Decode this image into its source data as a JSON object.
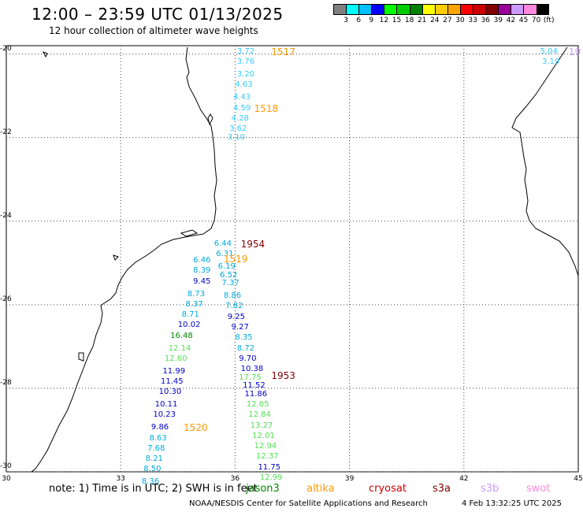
{
  "header": {
    "title": "12:00 – 23:59 UTC 01/13/2025",
    "subtitle": "12 hour collection of altimeter wave heights"
  },
  "colorbar": {
    "colors": [
      "#808080",
      "#00ffff",
      "#00bfff",
      "#0000ff",
      "#00ff00",
      "#00cc00",
      "#008000",
      "#ffff00",
      "#ffcc00",
      "#ffa500",
      "#ff0000",
      "#cc0000",
      "#800000",
      "#990099",
      "#cc99ff",
      "#ff88dd",
      "#000000"
    ],
    "labels": [
      "3",
      "6",
      "9",
      "12",
      "15",
      "18",
      "21",
      "24",
      "27",
      "30",
      "33",
      "36",
      "39",
      "42",
      "45",
      "70",
      "(ft)"
    ]
  },
  "axes": {
    "lon_ticks": [
      "30",
      "33",
      "36",
      "39",
      "42",
      "45"
    ],
    "lat_ticks": [
      "-20",
      "-22",
      "-24",
      "-26",
      "-28",
      "-30"
    ],
    "lon_range": [
      30,
      45
    ],
    "lat_range": [
      -30,
      -19.8
    ]
  },
  "tracks": [
    {
      "id": "1517",
      "color": "#ff9900",
      "lon": 36.95,
      "lat": -19.95
    },
    {
      "id": "1518",
      "color": "#ff9900",
      "lon": 36.5,
      "lat": -21.3
    },
    {
      "id": "1954",
      "color": "#800000",
      "lon": 36.15,
      "lat": -24.55
    },
    {
      "id": "1519",
      "color": "#ff9900",
      "lon": 35.7,
      "lat": -24.9
    },
    {
      "id": "1953",
      "color": "#800000",
      "lon": 36.95,
      "lat": -27.7
    },
    {
      "id": "1520",
      "color": "#ff9900",
      "lon": 34.65,
      "lat": -28.95
    },
    {
      "id": "19",
      "color": "#cc99ff",
      "lon": 44.75,
      "lat": -19.95
    }
  ],
  "wave_heights": [
    {
      "v": "3.72",
      "c": "#33ccff",
      "lon": 36.05,
      "lat": -19.95
    },
    {
      "v": "3.76",
      "c": "#33ccff",
      "lon": 36.05,
      "lat": -20.2
    },
    {
      "v": "3.20",
      "c": "#33ccff",
      "lon": 36.05,
      "lat": -20.5
    },
    {
      "v": "4.63",
      "c": "#33ccff",
      "lon": 36.0,
      "lat": -20.75
    },
    {
      "v": "4.43",
      "c": "#33ccff",
      "lon": 35.95,
      "lat": -21.05
    },
    {
      "v": "4.59",
      "c": "#33ccff",
      "lon": 35.95,
      "lat": -21.3
    },
    {
      "v": "4.28",
      "c": "#33ccff",
      "lon": 35.9,
      "lat": -21.55
    },
    {
      "v": "3.62",
      "c": "#33ccff",
      "lon": 35.85,
      "lat": -21.8
    },
    {
      "v": "3.10",
      "c": "#33ccff",
      "lon": 35.8,
      "lat": -22.0
    },
    {
      "v": "5.04",
      "c": "#33ccff",
      "lon": 44.0,
      "lat": -19.95
    },
    {
      "v": "3.19",
      "c": "#33ccff",
      "lon": 44.05,
      "lat": -20.2
    },
    {
      "v": "6.44",
      "c": "#00aadd",
      "lon": 35.45,
      "lat": -24.55
    },
    {
      "v": "6.31",
      "c": "#00aadd",
      "lon": 35.5,
      "lat": -24.8
    },
    {
      "v": "6.46",
      "c": "#00aadd",
      "lon": 34.9,
      "lat": -24.95
    },
    {
      "v": "6.19",
      "c": "#00aadd",
      "lon": 35.55,
      "lat": -25.1
    },
    {
      "v": "8.39",
      "c": "#00aadd",
      "lon": 34.9,
      "lat": -25.2
    },
    {
      "v": "6.52",
      "c": "#00aadd",
      "lon": 35.6,
      "lat": -25.3
    },
    {
      "v": "9.45",
      "c": "#0000cc",
      "lon": 34.9,
      "lat": -25.45
    },
    {
      "v": "7.37",
      "c": "#00aadd",
      "lon": 35.65,
      "lat": -25.5
    },
    {
      "v": "8.73",
      "c": "#00aadd",
      "lon": 34.75,
      "lat": -25.75
    },
    {
      "v": "8.86",
      "c": "#00aadd",
      "lon": 35.7,
      "lat": -25.8
    },
    {
      "v": "8.37",
      "c": "#00aadd",
      "lon": 34.7,
      "lat": -26.0
    },
    {
      "v": "7.82",
      "c": "#00aadd",
      "lon": 35.75,
      "lat": -26.05
    },
    {
      "v": "8.71",
      "c": "#00aadd",
      "lon": 34.6,
      "lat": -26.25
    },
    {
      "v": "9.25",
      "c": "#0000cc",
      "lon": 35.8,
      "lat": -26.3
    },
    {
      "v": "10.02",
      "c": "#0000cc",
      "lon": 34.5,
      "lat": -26.5
    },
    {
      "v": "9.27",
      "c": "#0000cc",
      "lon": 35.9,
      "lat": -26.55
    },
    {
      "v": "16.48",
      "c": "#008800",
      "lon": 34.3,
      "lat": -26.75
    },
    {
      "v": "8.35",
      "c": "#00aadd",
      "lon": 36.0,
      "lat": -26.8
    },
    {
      "v": "12.14",
      "c": "#55dd55",
      "lon": 34.25,
      "lat": -27.05
    },
    {
      "v": "8.72",
      "c": "#00aadd",
      "lon": 36.05,
      "lat": -27.05
    },
    {
      "v": "12.60",
      "c": "#55dd55",
      "lon": 34.15,
      "lat": -27.3
    },
    {
      "v": "9.70",
      "c": "#0000cc",
      "lon": 36.1,
      "lat": -27.3
    },
    {
      "v": "11.99",
      "c": "#0000cc",
      "lon": 34.1,
      "lat": -27.6
    },
    {
      "v": "10.38",
      "c": "#0000cc",
      "lon": 36.15,
      "lat": -27.55
    },
    {
      "v": "17.75",
      "c": "#55dd55",
      "lon": 36.1,
      "lat": -27.75
    },
    {
      "v": "11.45",
      "c": "#0000cc",
      "lon": 34.05,
      "lat": -27.85
    },
    {
      "v": "11.52",
      "c": "#0000cc",
      "lon": 36.2,
      "lat": -27.95
    },
    {
      "v": "10.30",
      "c": "#0000cc",
      "lon": 34.0,
      "lat": -28.1
    },
    {
      "v": "11.86",
      "c": "#0000cc",
      "lon": 36.25,
      "lat": -28.15
    },
    {
      "v": "10.11",
      "c": "#0000cc",
      "lon": 33.9,
      "lat": -28.4
    },
    {
      "v": "12.05",
      "c": "#55dd55",
      "lon": 36.3,
      "lat": -28.4
    },
    {
      "v": "10.23",
      "c": "#0000cc",
      "lon": 33.85,
      "lat": -28.65
    },
    {
      "v": "12.84",
      "c": "#55dd55",
      "lon": 36.35,
      "lat": -28.65
    },
    {
      "v": "9.86",
      "c": "#0000cc",
      "lon": 33.8,
      "lat": -28.95
    },
    {
      "v": "13.27",
      "c": "#55dd55",
      "lon": 36.4,
      "lat": -28.9
    },
    {
      "v": "8.63",
      "c": "#00aadd",
      "lon": 33.75,
      "lat": -29.2
    },
    {
      "v": "12.01",
      "c": "#55dd55",
      "lon": 36.45,
      "lat": -29.15
    },
    {
      "v": "7.68",
      "c": "#00aadd",
      "lon": 33.7,
      "lat": -29.45
    },
    {
      "v": "12.94",
      "c": "#55dd55",
      "lon": 36.5,
      "lat": -29.4
    },
    {
      "v": "8.21",
      "c": "#00aadd",
      "lon": 33.65,
      "lat": -29.7
    },
    {
      "v": "12.37",
      "c": "#55dd55",
      "lon": 36.55,
      "lat": -29.65
    },
    {
      "v": "8.50",
      "c": "#00aadd",
      "lon": 33.6,
      "lat": -29.95
    },
    {
      "v": "11.75",
      "c": "#0000cc",
      "lon": 36.6,
      "lat": -29.9
    },
    {
      "v": "8.36",
      "c": "#00aadd",
      "lon": 33.55,
      "lat": -30.25
    },
    {
      "v": "12.99",
      "c": "#55dd55",
      "lon": 36.65,
      "lat": -30.15
    }
  ],
  "footer": {
    "note": "note:  1) Time is in UTC;  2) SWH is in feet",
    "satellites": [
      {
        "name": "jason3",
        "color": "#008800"
      },
      {
        "name": "altika",
        "color": "#ff9900"
      },
      {
        "name": "cryosat",
        "color": "#cc0000"
      },
      {
        "name": "s3a",
        "color": "#800000"
      },
      {
        "name": "s3b",
        "color": "#cc99ff"
      },
      {
        "name": "swot",
        "color": "#ff88dd"
      }
    ],
    "credit": "NOAA/NESDIS Center for Satellite Applications and Research",
    "timestamp": "4 Feb 13:32:25 UTC 2025"
  }
}
